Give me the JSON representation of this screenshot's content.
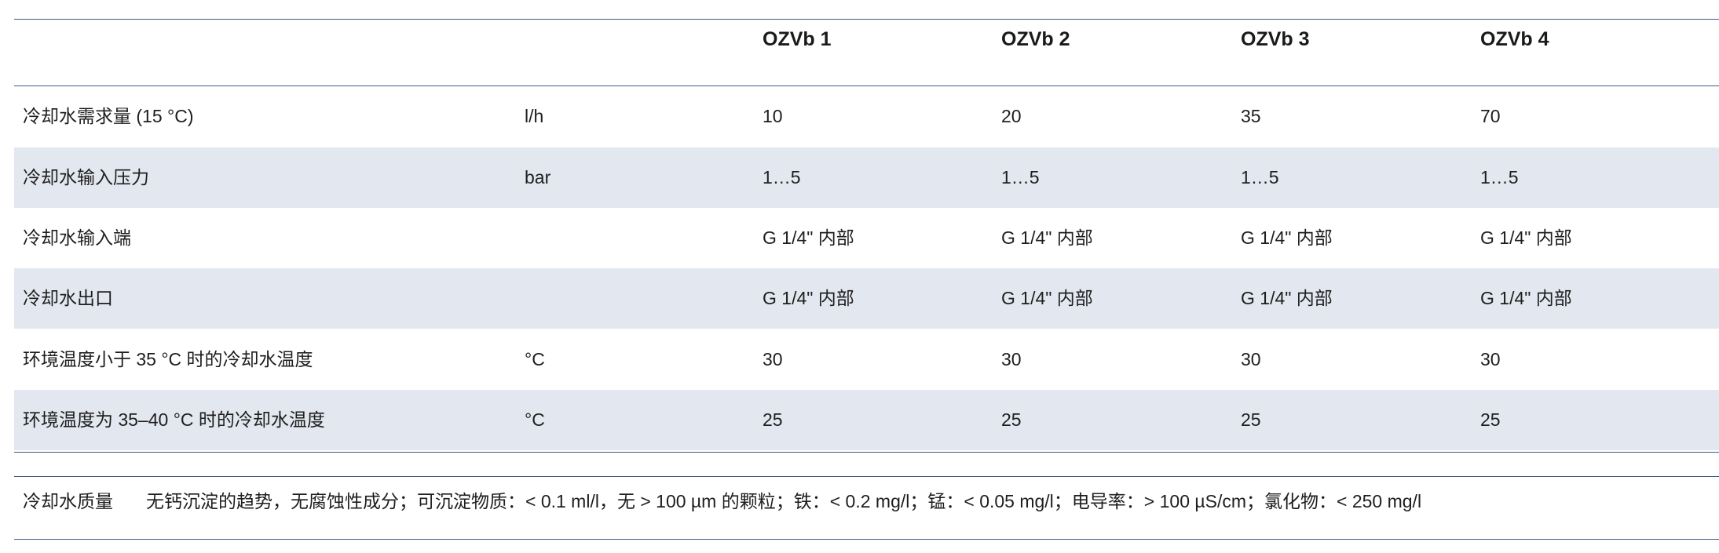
{
  "header": {
    "columns": [
      "OZVb 1",
      "OZVb 2",
      "OZVb 3",
      "OZVb 4"
    ]
  },
  "rows": [
    {
      "label": "冷却水需求量 (15 °C)",
      "unit": "l/h",
      "values": [
        "10",
        "20",
        "35",
        "70"
      ]
    },
    {
      "label": "冷却水输入压力",
      "unit": "bar",
      "values": [
        "1…5",
        "1…5",
        "1…5",
        "1…5"
      ]
    },
    {
      "label": "冷却水输入端",
      "unit": "",
      "values": [
        "G 1/4\" 内部",
        "G 1/4\" 内部",
        "G 1/4\" 内部",
        "G 1/4\" 内部"
      ]
    },
    {
      "label": "冷却水出口",
      "unit": "",
      "values": [
        "G 1/4\" 内部",
        "G 1/4\" 内部",
        "G 1/4\" 内部",
        "G 1/4\" 内部"
      ]
    },
    {
      "label": "环境温度小于 35 °C 时的冷却水温度",
      "unit": "°C",
      "values": [
        "30",
        "30",
        "30",
        "30"
      ]
    },
    {
      "label": "环境温度为 35–40 °C 时的冷却水温度",
      "unit": "°C",
      "values": [
        "25",
        "25",
        "25",
        "25"
      ]
    }
  ],
  "quality": {
    "label": "冷却水质量",
    "text": "无钙沉淀的趋势，无腐蚀性成分；可沉淀物质：< 0.1 ml/l，无 > 100 µm 的颗粒；铁：< 0.2 mg/l；锰：< 0.05 mg/l；电导率：> 100 µS/cm；氯化物：< 250 mg/l"
  },
  "colors": {
    "rule": "#3d5a85",
    "row_shade": "#e3e7ef",
    "text": "#1e1e1e"
  }
}
